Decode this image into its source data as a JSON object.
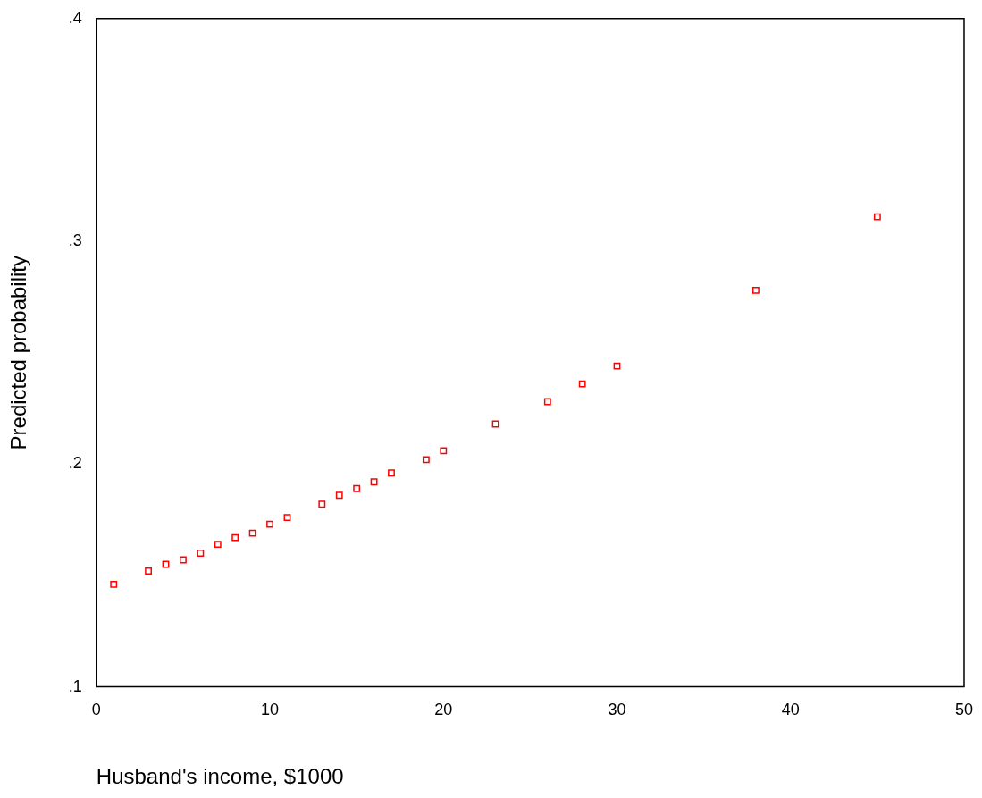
{
  "chart_data": {
    "type": "scatter",
    "xlabel": "Husband's income, $1000",
    "ylabel": "Predicted probability",
    "x": [
      1,
      3,
      4,
      5,
      6,
      7,
      8,
      9,
      10,
      11,
      13,
      14,
      15,
      16,
      17,
      19,
      20,
      23,
      26,
      28,
      30,
      38,
      45
    ],
    "values": [
      0.146,
      0.152,
      0.155,
      0.157,
      0.16,
      0.164,
      0.167,
      0.169,
      0.173,
      0.176,
      0.182,
      0.186,
      0.189,
      0.192,
      0.196,
      0.202,
      0.206,
      0.218,
      0.228,
      0.236,
      0.244,
      0.278,
      0.311
    ],
    "color": "#ff0000",
    "marker": "square",
    "xlim": [
      0,
      50
    ],
    "xticks": [
      0,
      10,
      20,
      30,
      40,
      50
    ],
    "ylim": [
      0.1,
      0.4
    ],
    "yticks": [
      {
        "value": 0.1,
        "label": ".1"
      },
      {
        "value": 0.2,
        "label": ".2"
      },
      {
        "value": 0.3,
        "label": ".3"
      },
      {
        "value": 0.4,
        "label": ".4"
      }
    ]
  }
}
